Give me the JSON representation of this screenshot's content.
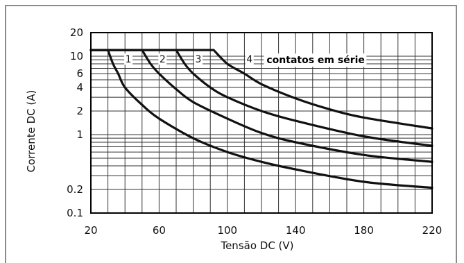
{
  "chart_data": {
    "type": "line",
    "xlabel": "Tensão DC (V)",
    "ylabel": "Corrente DC (A)",
    "xscale": "linear",
    "yscale": "log",
    "xlim": [
      20,
      220
    ],
    "ylim": [
      0.1,
      20
    ],
    "x_ticks": [
      20,
      60,
      100,
      140,
      180,
      220
    ],
    "x_tick_labels": [
      "20",
      "60",
      "100",
      "140",
      "180",
      "220"
    ],
    "y_ticks": [
      0.1,
      0.2,
      1,
      2,
      4,
      6,
      10,
      20
    ],
    "y_tick_labels": [
      "0.1",
      "0.2",
      "1",
      "2",
      "4",
      "6",
      "10",
      "20"
    ],
    "grid": true,
    "annotation": "contatos em série",
    "series": [
      {
        "name": "1",
        "x": [
          20,
          30,
          33,
          36,
          40,
          50,
          60,
          80,
          100,
          120,
          140,
          180,
          220
        ],
        "y": [
          12,
          12,
          8,
          6,
          4,
          2.4,
          1.6,
          0.9,
          0.6,
          0.45,
          0.36,
          0.25,
          0.21
        ]
      },
      {
        "name": "2",
        "x": [
          20,
          50,
          55,
          60,
          70,
          80,
          100,
          120,
          140,
          180,
          220
        ],
        "y": [
          12,
          12,
          8,
          6,
          3.8,
          2.6,
          1.6,
          1.05,
          0.8,
          0.55,
          0.45
        ]
      },
      {
        "name": "3",
        "x": [
          20,
          70,
          75,
          80,
          90,
          100,
          120,
          140,
          180,
          220
        ],
        "y": [
          12,
          12,
          8,
          6,
          4,
          3.0,
          2.0,
          1.5,
          0.95,
          0.72
        ]
      },
      {
        "name": "4",
        "x": [
          20,
          92,
          100,
          110,
          120,
          140,
          160,
          180,
          220
        ],
        "y": [
          12,
          12,
          8,
          6,
          4.4,
          2.9,
          2.1,
          1.65,
          1.2
        ]
      }
    ]
  }
}
